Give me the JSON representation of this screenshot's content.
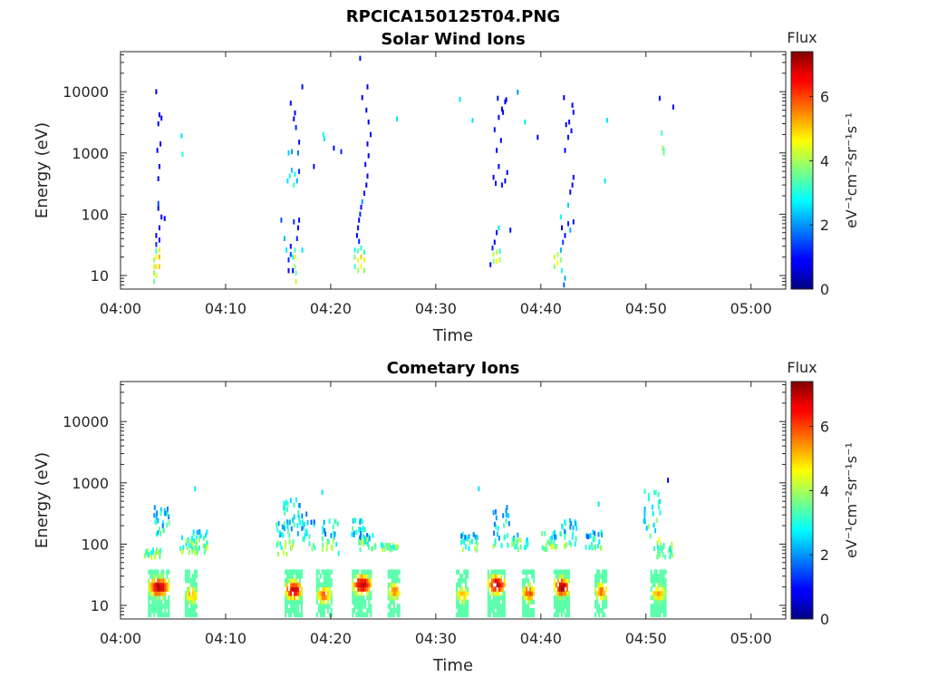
{
  "figure_title": "RPCICA150125T04.PNG",
  "colorbar": {
    "title": "Flux",
    "unit_label": "eV⁻¹cm⁻²sr⁻¹s⁻¹",
    "range": [
      0,
      7.4
    ],
    "ticks": [
      "0",
      "2",
      "4",
      "6"
    ],
    "colormap": "jet"
  },
  "chart_data": [
    {
      "type": "heatmap",
      "title": "Solar Wind Ions",
      "xlabel": "Time",
      "ylabel": "Energy (eV)",
      "x_ticks": [
        "04:00",
        "04:10",
        "04:20",
        "04:30",
        "04:40",
        "04:50",
        "05:00"
      ],
      "xlim_minutes": [
        0,
        63.3
      ],
      "y_scale": "log",
      "y_ticks": [
        "10",
        "100",
        "1000",
        "10000"
      ],
      "ylim": [
        6,
        45000
      ],
      "cells": [
        [
          3.2,
          8,
          3.5
        ],
        [
          3.2,
          11,
          3.8
        ],
        [
          3.2,
          14,
          4.2
        ],
        [
          3.2,
          18,
          4.0
        ],
        [
          3.4,
          10,
          4.5
        ],
        [
          3.4,
          14,
          4.8
        ],
        [
          3.4,
          20,
          4.6
        ],
        [
          3.4,
          25,
          3.2
        ],
        [
          3.4,
          32,
          1.2
        ],
        [
          3.4,
          45,
          0.8
        ],
        [
          3.7,
          14,
          5.0
        ],
        [
          3.7,
          20,
          5.2
        ],
        [
          3.7,
          26,
          4.8
        ],
        [
          3.7,
          38,
          1.0
        ],
        [
          3.7,
          60,
          0.8
        ],
        [
          3.6,
          125,
          0.7
        ],
        [
          3.6,
          150,
          1.5
        ],
        [
          3.9,
          90,
          0.9
        ],
        [
          4.2,
          85,
          0.9
        ],
        [
          3.6,
          380,
          0.9
        ],
        [
          3.7,
          600,
          0.8
        ],
        [
          3.5,
          1100,
          0.9
        ],
        [
          3.8,
          1400,
          0.8
        ],
        [
          3.6,
          3000,
          0.9
        ],
        [
          3.7,
          4200,
          0.9
        ],
        [
          3.9,
          3700,
          0.8
        ],
        [
          3.4,
          10000,
          0.9
        ],
        [
          5.8,
          1900,
          2.6
        ],
        [
          5.9,
          950,
          3.0
        ],
        [
          15.3,
          80,
          1.5
        ],
        [
          15.6,
          40,
          2.2
        ],
        [
          15.8,
          26,
          2.6
        ],
        [
          16.0,
          18,
          1.2
        ],
        [
          16.0,
          12,
          1.0
        ],
        [
          16.2,
          22,
          1.5
        ],
        [
          16.2,
          30,
          1.0
        ],
        [
          16.4,
          12,
          0.9
        ],
        [
          16.4,
          20,
          3.0
        ],
        [
          16.6,
          14,
          3.8
        ],
        [
          16.6,
          20,
          4.4
        ],
        [
          16.6,
          26,
          3.2
        ],
        [
          16.7,
          8,
          4.2
        ],
        [
          16.7,
          11,
          3.5
        ],
        [
          16.8,
          40,
          1.2
        ],
        [
          16.9,
          60,
          0.9
        ],
        [
          17.0,
          80,
          1.0
        ],
        [
          16.5,
          75,
          1.2
        ],
        [
          17.3,
          26,
          2.6
        ],
        [
          15.9,
          350,
          2.6
        ],
        [
          16.1,
          420,
          3.0
        ],
        [
          16.3,
          520,
          2.4
        ],
        [
          16.5,
          300,
          3.2
        ],
        [
          16.6,
          450,
          2.8
        ],
        [
          16.8,
          350,
          2.2
        ],
        [
          17.0,
          500,
          1.2
        ],
        [
          16.0,
          1000,
          2.4
        ],
        [
          16.3,
          1050,
          2.0
        ],
        [
          16.9,
          1000,
          1.8
        ],
        [
          16.7,
          2600,
          1.2
        ],
        [
          16.5,
          3600,
          0.9
        ],
        [
          16.2,
          6500,
          1.0
        ],
        [
          16.6,
          4500,
          0.8
        ],
        [
          17.3,
          12000,
          1.0
        ],
        [
          17.0,
          1500,
          1.0
        ],
        [
          18.4,
          600,
          1.0
        ],
        [
          19.3,
          2000,
          3.0
        ],
        [
          19.4,
          1700,
          2.6
        ],
        [
          20.3,
          1200,
          1.0
        ],
        [
          21.0,
          1050,
          1.2
        ],
        [
          22.3,
          14,
          3.2
        ],
        [
          22.3,
          20,
          3.6
        ],
        [
          22.3,
          26,
          2.8
        ],
        [
          22.6,
          12,
          4.0
        ],
        [
          22.6,
          18,
          4.5
        ],
        [
          22.6,
          25,
          3.6
        ],
        [
          22.9,
          14,
          4.6
        ],
        [
          22.9,
          20,
          5.0
        ],
        [
          22.9,
          28,
          3.0
        ],
        [
          22.7,
          36,
          1.2
        ],
        [
          23.2,
          12,
          3.8
        ],
        [
          23.2,
          18,
          4.4
        ],
        [
          23.2,
          24,
          3.2
        ],
        [
          22.5,
          45,
          0.9
        ],
        [
          22.6,
          60,
          1.0
        ],
        [
          22.7,
          80,
          0.9
        ],
        [
          22.8,
          100,
          1.2
        ],
        [
          22.9,
          130,
          1.0
        ],
        [
          23.0,
          160,
          2.0
        ],
        [
          23.2,
          220,
          1.0
        ],
        [
          23.4,
          300,
          0.9
        ],
        [
          23.5,
          420,
          0.9
        ],
        [
          23.3,
          650,
          1.0
        ],
        [
          23.6,
          900,
          0.9
        ],
        [
          23.5,
          1400,
          0.8
        ],
        [
          23.8,
          2000,
          0.9
        ],
        [
          23.6,
          3200,
          0.8
        ],
        [
          23.4,
          5000,
          0.9
        ],
        [
          23.0,
          8000,
          0.9
        ],
        [
          23.5,
          12000,
          0.8
        ],
        [
          22.8,
          35000,
          1.0
        ],
        [
          26.3,
          3600,
          2.6
        ],
        [
          32.3,
          7500,
          2.6
        ],
        [
          33.5,
          3400,
          2.6
        ],
        [
          35.2,
          15,
          1.0
        ],
        [
          35.5,
          17,
          3.8
        ],
        [
          35.5,
          22,
          4.0
        ],
        [
          35.8,
          17,
          4.6
        ],
        [
          35.8,
          24,
          4.2
        ],
        [
          36.1,
          18,
          4.0
        ],
        [
          36.1,
          25,
          3.0
        ],
        [
          35.4,
          28,
          1.2
        ],
        [
          35.6,
          35,
          0.9
        ],
        [
          35.8,
          50,
          1.0
        ],
        [
          36.0,
          60,
          2.6
        ],
        [
          37.1,
          55,
          1.0
        ],
        [
          35.5,
          400,
          0.9
        ],
        [
          35.7,
          320,
          1.0
        ],
        [
          36.0,
          600,
          0.9
        ],
        [
          36.3,
          300,
          1.0
        ],
        [
          36.6,
          350,
          0.9
        ],
        [
          36.8,
          480,
          1.0
        ],
        [
          35.8,
          1100,
          0.9
        ],
        [
          36.2,
          1600,
          0.8
        ],
        [
          35.6,
          2400,
          1.0
        ],
        [
          36.0,
          3800,
          0.9
        ],
        [
          36.3,
          5200,
          0.8
        ],
        [
          36.6,
          6800,
          0.9
        ],
        [
          35.9,
          7800,
          1.0
        ],
        [
          36.7,
          7400,
          0.8
        ],
        [
          36.4,
          4600,
          0.9
        ],
        [
          37.8,
          9800,
          2.0
        ],
        [
          39.7,
          1800,
          0.9
        ],
        [
          38.5,
          3200,
          2.6
        ],
        [
          41.3,
          14,
          3.8
        ],
        [
          41.3,
          20,
          4.2
        ],
        [
          41.6,
          16,
          4.6
        ],
        [
          41.6,
          22,
          4.0
        ],
        [
          41.9,
          18,
          3.8
        ],
        [
          42.0,
          12,
          3.0
        ],
        [
          42.3,
          9,
          2.2
        ],
        [
          42.2,
          7,
          1.6
        ],
        [
          41.9,
          26,
          2.2
        ],
        [
          42.1,
          35,
          1.4
        ],
        [
          42.3,
          45,
          1.0
        ],
        [
          42.0,
          60,
          0.9
        ],
        [
          42.6,
          70,
          1.2
        ],
        [
          43.1,
          75,
          1.0
        ],
        [
          42.8,
          55,
          2.2
        ],
        [
          41.9,
          90,
          2.8
        ],
        [
          42.6,
          140,
          2.4
        ],
        [
          42.8,
          230,
          1.0
        ],
        [
          43.0,
          300,
          1.0
        ],
        [
          43.1,
          400,
          0.9
        ],
        [
          42.3,
          1100,
          0.9
        ],
        [
          42.6,
          1800,
          0.9
        ],
        [
          42.9,
          2300,
          0.9
        ],
        [
          42.4,
          2900,
          0.8
        ],
        [
          43.1,
          4600,
          0.9
        ],
        [
          43.0,
          6000,
          0.8
        ],
        [
          42.2,
          8000,
          0.9
        ],
        [
          42.7,
          3200,
          0.9
        ],
        [
          46.3,
          3400,
          2.6
        ],
        [
          46.1,
          350,
          2.6
        ],
        [
          51.5,
          2100,
          3.2
        ],
        [
          51.6,
          1200,
          4.0
        ],
        [
          51.7,
          1100,
          3.2
        ],
        [
          51.7,
          1000,
          3.6
        ],
        [
          51.3,
          7800,
          1.0
        ],
        [
          52.6,
          5600,
          1.0
        ]
      ]
    },
    {
      "type": "heatmap",
      "title": "Cometary Ions",
      "xlabel": "Time",
      "ylabel": "Energy (eV)",
      "x_ticks": [
        "04:00",
        "04:10",
        "04:20",
        "04:30",
        "04:40",
        "04:50",
        "05:00"
      ],
      "xlim_minutes": [
        0,
        63.3
      ],
      "y_scale": "log",
      "y_ticks": [
        "10",
        "100",
        "1000",
        "10000"
      ],
      "ylim": [
        6,
        45000
      ],
      "clusters": [
        [
          3.7,
          1.0,
          20,
          6.8,
          0.85
        ],
        [
          6.8,
          0.6,
          15,
          5.0,
          0.8
        ],
        [
          16.5,
          0.8,
          18,
          6.6,
          0.85
        ],
        [
          19.4,
          0.7,
          15,
          5.4,
          0.8
        ],
        [
          23.0,
          0.9,
          22,
          6.8,
          0.85
        ],
        [
          26.1,
          0.6,
          17,
          5.2,
          0.8
        ],
        [
          32.6,
          0.6,
          15,
          5.0,
          0.8
        ],
        [
          35.8,
          0.8,
          22,
          6.8,
          0.85
        ],
        [
          38.9,
          0.6,
          16,
          5.6,
          0.8
        ],
        [
          42.0,
          0.7,
          20,
          6.8,
          0.85
        ],
        [
          45.8,
          0.6,
          17,
          5.4,
          0.8
        ],
        [
          51.2,
          0.7,
          16,
          5.0,
          0.8
        ]
      ],
      "scatter": [
        [
          3.0,
          80,
          60,
          2.8
        ],
        [
          4.0,
          140,
          400,
          2.8
        ],
        [
          6.5,
          70,
          130,
          2.6
        ],
        [
          7.5,
          70,
          160,
          2.8
        ],
        [
          15.6,
          60,
          250,
          2.8
        ],
        [
          16.3,
          90,
          550,
          2.6
        ],
        [
          17.7,
          80,
          350,
          2.6
        ],
        [
          20.0,
          70,
          250,
          2.6
        ],
        [
          22.7,
          90,
          250,
          2.8
        ],
        [
          23.5,
          80,
          150,
          2.6
        ],
        [
          25.6,
          80,
          100,
          2.8
        ],
        [
          33.2,
          80,
          150,
          2.6
        ],
        [
          36.2,
          90,
          400,
          2.6
        ],
        [
          38.0,
          80,
          150,
          2.6
        ],
        [
          40.8,
          80,
          160,
          2.8
        ],
        [
          42.6,
          90,
          250,
          2.8
        ],
        [
          45.0,
          80,
          160,
          2.6
        ],
        [
          50.6,
          70,
          750,
          3.0
        ],
        [
          51.8,
          60,
          100,
          2.6
        ]
      ],
      "cells": [
        [
          52.1,
          1100,
          0.9
        ],
        [
          34.1,
          800,
          2.6
        ],
        [
          7.1,
          800,
          2.6
        ],
        [
          19.2,
          700,
          2.6
        ],
        [
          45.5,
          450,
          2.6
        ]
      ]
    }
  ]
}
